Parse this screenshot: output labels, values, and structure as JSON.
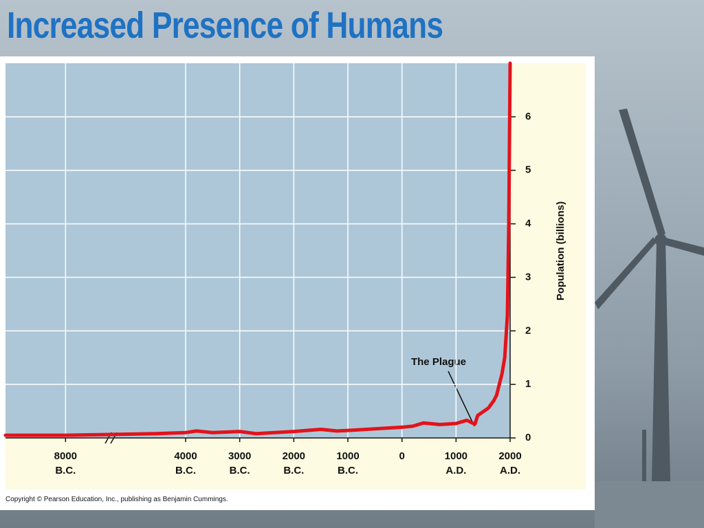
{
  "chart_data": {
    "type": "line",
    "title": "Increased Presence of Humans",
    "y_label": "Population (billions)",
    "annotation": "The Plague",
    "footer": "Copyright © Pearson Education, Inc., publishing as Benjamin Cummings.",
    "x": [
      -10000,
      -8000,
      -7000,
      -5000,
      -4000,
      -3800,
      -3500,
      -3000,
      -2700,
      -2000,
      -1500,
      -1200,
      -1000,
      -500,
      0,
      200,
      400,
      700,
      1000,
      1200,
      1300,
      1350,
      1400,
      1600,
      1700,
      1750,
      1800,
      1850,
      1900,
      1950,
      1975,
      2000
    ],
    "values": [
      0.05,
      0.05,
      0.06,
      0.08,
      0.1,
      0.13,
      0.1,
      0.12,
      0.08,
      0.12,
      0.16,
      0.13,
      0.14,
      0.17,
      0.2,
      0.22,
      0.28,
      0.25,
      0.27,
      0.33,
      0.28,
      0.26,
      0.42,
      0.56,
      0.7,
      0.8,
      1.0,
      1.2,
      1.5,
      2.3,
      4.0,
      7.0
    ],
    "color": "#e3131b",
    "xlim": [
      -10000,
      2000
    ],
    "xticks": [
      {
        "value": -8000,
        "label": "8000 B.C."
      },
      {
        "value": -4000,
        "label": "4000 B.C."
      },
      {
        "value": -3000,
        "label": "3000 B.C."
      },
      {
        "value": -2000,
        "label": "2000 B.C."
      },
      {
        "value": -1000,
        "label": "1000 B.C."
      },
      0,
      {
        "value": 1000,
        "label": "1000 A.D."
      },
      {
        "value": 2000,
        "label": "2000 A.D."
      }
    ],
    "ylim": [
      0,
      7
    ],
    "yticks": [
      0,
      1,
      2,
      3,
      4,
      5,
      6
    ],
    "grid": true
  }
}
